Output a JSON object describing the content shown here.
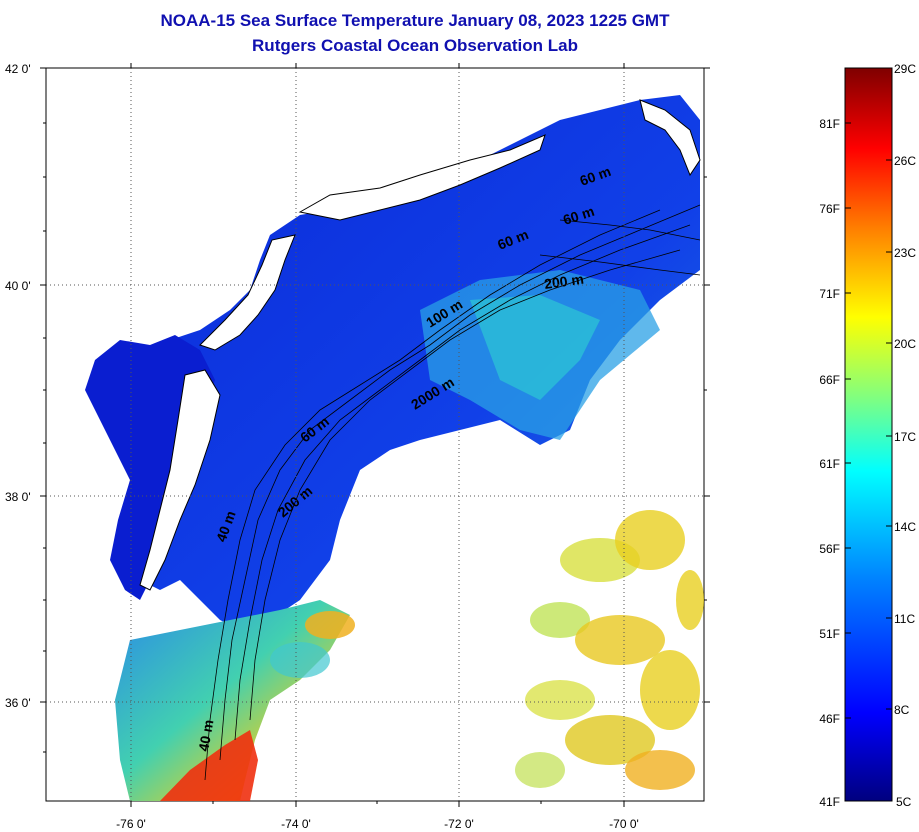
{
  "title": "NOAA-15 Sea Surface Temperature January 08, 2023 1225 GMT",
  "subtitle": "Rutgers Coastal Ocean Observation Lab",
  "map": {
    "lat_labels": [
      "42 0'",
      "40 0'",
      "38 0'",
      "36 0'"
    ],
    "lon_labels": [
      "-76 0'",
      "-74 0'",
      "-72 0'",
      "-70 0'"
    ],
    "contour_labels": [
      "60 m",
      "60 m",
      "60 m",
      "200 m",
      "100 m",
      "2000 m",
      "60 m",
      "200 m",
      "40 m",
      "40 m"
    ]
  },
  "colorbar": {
    "left_labels": [
      "81F",
      "76F",
      "71F",
      "66F",
      "61F",
      "56F",
      "51F",
      "46F",
      "41F"
    ],
    "right_labels": [
      "29C",
      "26C",
      "23C",
      "20C",
      "17C",
      "14C",
      "11C",
      "8C",
      "5C"
    ],
    "colors": [
      "#00007f",
      "#0000ff",
      "#0080ff",
      "#00ffff",
      "#80ff80",
      "#ffff00",
      "#ff8000",
      "#ff0000",
      "#7f0000"
    ]
  }
}
